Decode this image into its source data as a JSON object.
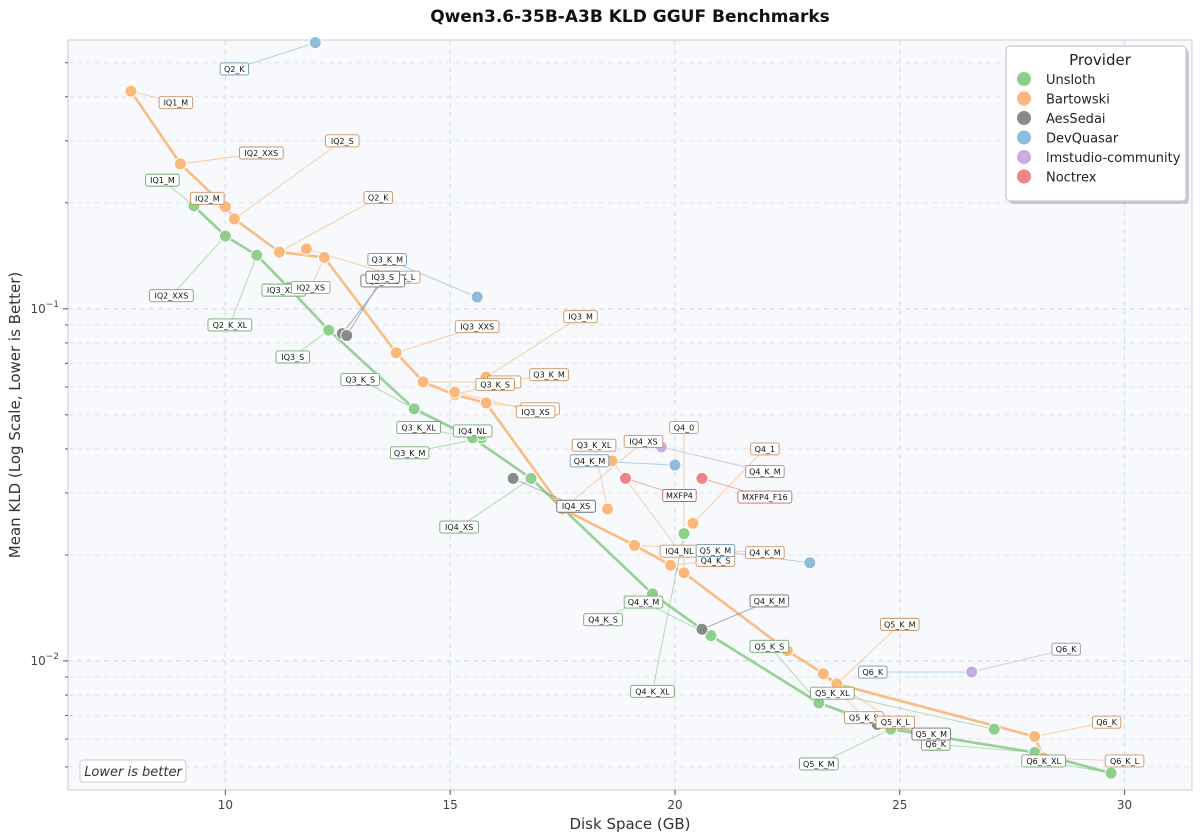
{
  "chart_data": {
    "type": "scatter",
    "title": "Qwen3.6-35B-A3B KLD GGUF Benchmarks",
    "xlabel": "Disk Space (GB)",
    "ylabel": "Mean KLD (Log Scale, Lower is Better)",
    "xlim": [
      6.5,
      31.5
    ],
    "ylim": [
      0.0043,
      0.58
    ],
    "y_scale": "log",
    "x_ticks": [
      10,
      15,
      20,
      25,
      30
    ],
    "y_ticks": [
      {
        "value": 0.1,
        "label": "10^-1",
        "base": "10",
        "exp": "−1"
      },
      {
        "value": 0.01,
        "label": "10^-2",
        "base": "10",
        "exp": "−2"
      }
    ],
    "grid": true,
    "legend": {
      "title": "Provider",
      "position": "top-right"
    },
    "annotation": "Lower is better",
    "series": [
      {
        "name": "Unsloth",
        "color": "#8fcf8c",
        "frontier": true,
        "points": [
          {
            "label": "IQ1_M",
            "x": 9.3,
            "y": 0.196,
            "lx": 8.6,
            "ly": 0.232
          },
          {
            "label": "IQ2_XXS",
            "x": 10.0,
            "y": 0.161,
            "lx": 8.8,
            "ly": 0.109
          },
          {
            "label": "Q2_K_XL",
            "x": 10.7,
            "y": 0.142,
            "lx": 10.1,
            "ly": 0.09
          },
          {
            "label": "IQ3_XXS",
            "x": 11.4,
            "y": 0.115,
            "lx": 11.3,
            "ly": 0.113
          },
          {
            "label": "IQ3_S",
            "x": 12.3,
            "y": 0.087,
            "lx": 11.5,
            "ly": 0.073
          },
          {
            "label": "Q3_K_S",
            "x": 14.2,
            "y": 0.052,
            "lx": 13.0,
            "ly": 0.063
          },
          {
            "label": "Q3_K_M",
            "x": 15.7,
            "y": 0.043,
            "lx": 14.1,
            "ly": 0.039
          },
          {
            "label": "Q3_K_XL",
            "x": 15.5,
            "y": 0.043,
            "lx": 14.3,
            "ly": 0.046
          },
          {
            "label": "IQ4_NL",
            "x": 15.7,
            "y": 0.044,
            "lx": 15.5,
            "ly": 0.045
          },
          {
            "label": "IQ4_XS",
            "x": 16.8,
            "y": 0.033,
            "lx": 15.2,
            "ly": 0.024
          },
          {
            "label": "Q4_K_S",
            "x": 19.5,
            "y": 0.0155,
            "lx": 18.4,
            "ly": 0.0131
          },
          {
            "label": "Q4_K_M",
            "x": 20.8,
            "y": 0.0118,
            "lx": 19.3,
            "ly": 0.0147
          },
          {
            "label": "Q4_K_XL",
            "x": 20.2,
            "y": 0.023,
            "lx": 19.5,
            "ly": 0.0082
          },
          {
            "label": "Q5_K_S",
            "x": 23.2,
            "y": 0.0076,
            "lx": 22.1,
            "ly": 0.011
          },
          {
            "label": "Q5_K_M",
            "x": 24.8,
            "y": 0.0064,
            "lx": 23.2,
            "ly": 0.0051
          },
          {
            "label": "Q5_K_XL",
            "x": 27.1,
            "y": 0.0064,
            "lx": 23.5,
            "ly": 0.0081
          },
          {
            "label": "Q6_K",
            "x": 28.0,
            "y": 0.0055,
            "lx": 25.8,
            "ly": 0.0058
          },
          {
            "label": "Q6_K_XL",
            "x": 29.7,
            "y": 0.0048,
            "lx": 28.2,
            "ly": 0.0052
          }
        ]
      },
      {
        "name": "Bartowski",
        "color": "#fbb87a",
        "frontier": true,
        "points": [
          {
            "label": "IQ1_M",
            "x": 7.9,
            "y": 0.415,
            "lx": 8.9,
            "ly": 0.385
          },
          {
            "label": "IQ2_XXS",
            "x": 9.0,
            "y": 0.258,
            "lx": 10.8,
            "ly": 0.277
          },
          {
            "label": "IQ2_M",
            "x": 10.0,
            "y": 0.195,
            "lx": 9.6,
            "ly": 0.206
          },
          {
            "label": "IQ2_S",
            "x": 10.2,
            "y": 0.18,
            "lx": 12.6,
            "ly": 0.3
          },
          {
            "label": "Q2_K",
            "x": 11.2,
            "y": 0.145,
            "lx": 13.4,
            "ly": 0.207
          },
          {
            "label": "Q2_K_L",
            "x": 11.8,
            "y": 0.148,
            "lx": 13.9,
            "ly": 0.123
          },
          {
            "label": "IQ2_XS",
            "x": 12.2,
            "y": 0.14,
            "lx": 11.9,
            "ly": 0.115
          },
          {
            "label": "IQ3_XXS",
            "x": 13.8,
            "y": 0.075,
            "lx": 15.6,
            "ly": 0.089
          },
          {
            "label": "IQ3_S",
            "x": 14.4,
            "y": 0.062,
            "lx": 16.2,
            "ly": 0.062
          },
          {
            "label": "IQ3_M",
            "x": 15.8,
            "y": 0.064,
            "lx": 17.9,
            "ly": 0.095
          },
          {
            "label": "Q3_K_S",
            "x": 15.1,
            "y": 0.057,
            "lx": 16.0,
            "ly": 0.061
          },
          {
            "label": "Q3_K_M",
            "x": 16.2,
            "y": 0.062,
            "lx": 17.2,
            "ly": 0.065
          },
          {
            "label": "Q3_K_L",
            "x": 15.8,
            "y": 0.054,
            "lx": 17.0,
            "ly": 0.052
          },
          {
            "label": "IQ3_XS",
            "x": 15.1,
            "y": 0.058,
            "lx": 16.9,
            "ly": 0.051
          },
          {
            "label": "Q3_K_XL",
            "x": 18.5,
            "y": 0.027,
            "lx": 18.2,
            "ly": 0.041
          },
          {
            "label": "IQ4_XS",
            "x": 17.5,
            "y": 0.027,
            "lx": 19.3,
            "ly": 0.042
          },
          {
            "label": "IQ4_NL",
            "x": 18.6,
            "y": 0.037,
            "lx": 20.1,
            "ly": 0.0205
          },
          {
            "label": "Q4_K_S",
            "x": 19.9,
            "y": 0.0187,
            "lx": 20.9,
            "ly": 0.0193
          },
          {
            "label": "Q4_K_M",
            "x": 19.1,
            "y": 0.0213,
            "lx": 22.0,
            "ly": 0.0203
          },
          {
            "label": "Q4_0",
            "x": 20.2,
            "y": 0.0178,
            "lx": 20.2,
            "ly": 0.046
          },
          {
            "label": "Q4_1",
            "x": 20.4,
            "y": 0.0246,
            "lx": 22.0,
            "ly": 0.04
          },
          {
            "label": "Q5_K_S",
            "x": 23.3,
            "y": 0.0092,
            "lx": 24.2,
            "ly": 0.0069
          },
          {
            "label": "Q5_K_M",
            "x": 23.6,
            "y": 0.0086,
            "lx": 25.0,
            "ly": 0.0127
          },
          {
            "label": "Q5_K_L",
            "x": 22.5,
            "y": 0.0107,
            "lx": 24.9,
            "ly": 0.0067
          },
          {
            "label": "Q6_K",
            "x": 28.0,
            "y": 0.0061,
            "lx": 29.6,
            "ly": 0.0067
          },
          {
            "label": "Q6_K_L",
            "x": 28.2,
            "y": 0.0053,
            "lx": 30.0,
            "ly": 0.0052
          }
        ]
      },
      {
        "name": "AesSedai",
        "color": "#8a8a8a",
        "frontier": false,
        "points": [
          {
            "label": "IQ2_XXS",
            "x": 12.6,
            "y": 0.085,
            "lx": 13.5,
            "ly": 0.12
          },
          {
            "label": "IQ3_S",
            "x": 12.7,
            "y": 0.084,
            "lx": 13.5,
            "ly": 0.123
          },
          {
            "label": "IQ4_XS",
            "x": 16.4,
            "y": 0.033,
            "lx": 17.8,
            "ly": 0.0275
          },
          {
            "label": "Q4_K_M",
            "x": 20.6,
            "y": 0.0123,
            "lx": 22.1,
            "ly": 0.0148
          },
          {
            "label": "Q5_K_M",
            "x": 24.5,
            "y": 0.0066,
            "lx": 25.7,
            "ly": 0.0062
          }
        ]
      },
      {
        "name": "DevQuasar",
        "color": "#8ebcdd",
        "frontier": false,
        "points": [
          {
            "label": "Q2_K",
            "x": 12.0,
            "y": 0.57,
            "lx": 10.2,
            "ly": 0.48
          },
          {
            "label": "Q3_K_M",
            "x": 15.6,
            "y": 0.108,
            "lx": 13.6,
            "ly": 0.138
          },
          {
            "label": "Q4_K_M",
            "x": 20.0,
            "y": 0.036,
            "lx": 18.1,
            "ly": 0.037
          },
          {
            "label": "Q5_K_M",
            "x": 23.0,
            "y": 0.019,
            "lx": 20.9,
            "ly": 0.0206
          },
          {
            "label": "Q6_K",
            "x": 26.6,
            "y": 0.0093,
            "lx": 24.4,
            "ly": 0.0093
          }
        ]
      },
      {
        "name": "lmstudio-community",
        "color": "#c7aee0",
        "frontier": false,
        "points": [
          {
            "label": "Q4_K_M",
            "x": 19.7,
            "y": 0.0405,
            "lx": 22.0,
            "ly": 0.0345
          },
          {
            "label": "Q6_K",
            "x": 26.6,
            "y": 0.0093,
            "lx": 28.7,
            "ly": 0.0108
          }
        ]
      },
      {
        "name": "Noctrex",
        "color": "#ee8585",
        "frontier": false,
        "points": [
          {
            "label": "MXFP4",
            "x": 18.9,
            "y": 0.033,
            "lx": 20.1,
            "ly": 0.0295
          },
          {
            "label": "MXFP4_F16",
            "x": 20.6,
            "y": 0.033,
            "lx": 22.0,
            "ly": 0.0292
          }
        ]
      }
    ]
  }
}
